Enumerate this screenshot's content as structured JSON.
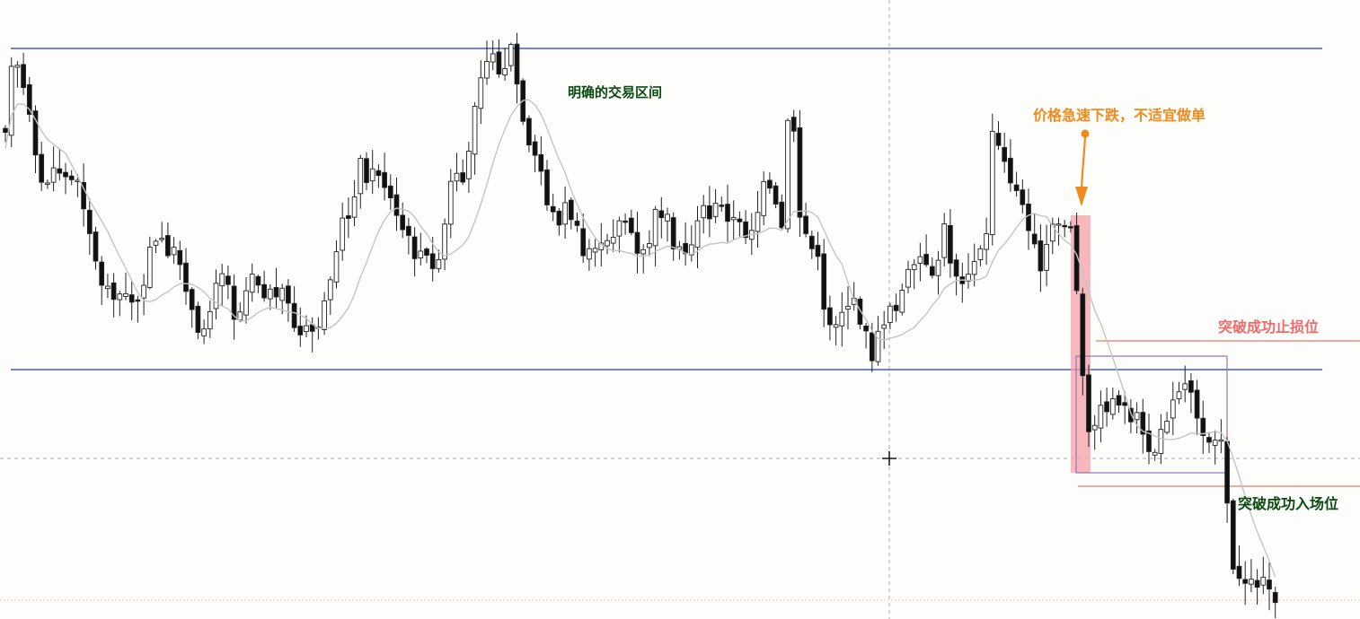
{
  "colors": {
    "background": "#fdfefb",
    "range_line": "#3b5bd6",
    "stop_line": "#e07a6a",
    "entry_line": "#e07a6a",
    "consolidation_box": "#9a6fb0",
    "highlight": "#f4a0a8",
    "arrow": "#f08a1c",
    "bull_body": "#ffffff",
    "bear_body": "#111111",
    "ma_line": "#c4c4c4",
    "annotation_green": "#0b4a10",
    "annotation_orange": "#f08a1c",
    "annotation_pink": "#ef6b6b"
  },
  "annotations": {
    "range_label": "明确的交易区间",
    "crash_label": "价格急速下跌，不适宜做单",
    "stop_label": "突破成功止损位",
    "entry_label": "突破成功入场位"
  },
  "chart_data": {
    "type": "candlestick",
    "title": "",
    "xlabel": "",
    "ylabel": "",
    "grid": false,
    "legend": "none",
    "series": [
      {
        "type": "candlestick",
        "values": "OHLC bars (approx.)"
      },
      {
        "type": "line",
        "values": "moving average"
      }
    ],
    "levels": {
      "range_top": 0.91,
      "range_bottom": 0.42,
      "breakout_stop": 0.465,
      "breakout_entry": 0.23
    },
    "candles_count": 214
  },
  "icons": {
    "crosshair": "crosshair-icon"
  }
}
